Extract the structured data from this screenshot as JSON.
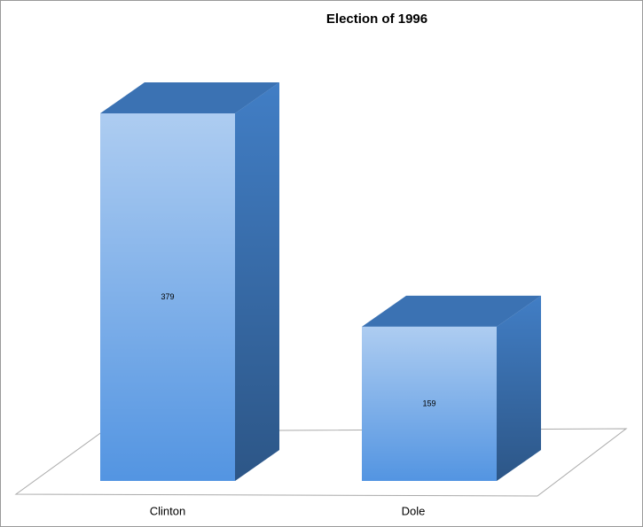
{
  "chart_data": {
    "type": "bar3d",
    "title": "Election of 1996",
    "categories": [
      "Clinton",
      "Dole"
    ],
    "values": [
      379,
      159
    ],
    "color": "#4a8fe0"
  }
}
